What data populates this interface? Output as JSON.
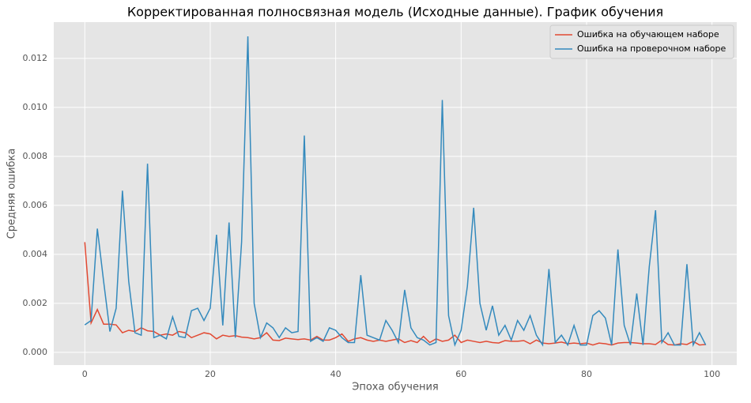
{
  "chart_data": {
    "type": "line",
    "title": "Корректированная полносвязная модель (Исходные данные). График обучения",
    "x_label": "Эпоха обучения",
    "y_label": "Средняя ошибка",
    "x": [
      0,
      1,
      2,
      3,
      4,
      5,
      6,
      7,
      8,
      9,
      10,
      11,
      12,
      13,
      14,
      15,
      16,
      17,
      18,
      19,
      20,
      21,
      22,
      23,
      24,
      25,
      26,
      27,
      28,
      29,
      30,
      31,
      32,
      33,
      34,
      35,
      36,
      37,
      38,
      39,
      40,
      41,
      42,
      43,
      44,
      45,
      46,
      47,
      48,
      49,
      50,
      51,
      52,
      53,
      54,
      55,
      56,
      57,
      58,
      59,
      60,
      61,
      62,
      63,
      64,
      65,
      66,
      67,
      68,
      69,
      70,
      71,
      72,
      73,
      74,
      75,
      76,
      77,
      78,
      79,
      80,
      81,
      82,
      83,
      84,
      85,
      86,
      87,
      88,
      89,
      90,
      91,
      92,
      93,
      94,
      95,
      96,
      97,
      98,
      99
    ],
    "series": [
      {
        "name": "Ошибка на обучающем наборе",
        "color": "#e24a33",
        "values": [
          0.0045,
          0.0012,
          0.00175,
          0.00115,
          0.00115,
          0.00112,
          0.0008,
          0.0009,
          0.00085,
          0.001,
          0.00088,
          0.00085,
          0.0007,
          0.00075,
          0.0007,
          0.00085,
          0.0008,
          0.0006,
          0.0007,
          0.0008,
          0.00075,
          0.00055,
          0.0007,
          0.00065,
          0.00068,
          0.00062,
          0.0006,
          0.00055,
          0.0006,
          0.0008,
          0.0005,
          0.00048,
          0.00058,
          0.00055,
          0.00052,
          0.00055,
          0.0005,
          0.00065,
          0.0005,
          0.0005,
          0.0006,
          0.00075,
          0.00045,
          0.00055,
          0.0006,
          0.0005,
          0.00045,
          0.0005,
          0.00045,
          0.0005,
          0.00055,
          0.0004,
          0.00048,
          0.0004,
          0.00065,
          0.0004,
          0.00055,
          0.00045,
          0.0005,
          0.0007,
          0.0004,
          0.0005,
          0.00045,
          0.0004,
          0.00045,
          0.0004,
          0.00038,
          0.00048,
          0.00045,
          0.00045,
          0.00048,
          0.00035,
          0.0005,
          0.00038,
          0.00035,
          0.00038,
          0.00042,
          0.00035,
          0.00038,
          0.00035,
          0.00038,
          0.0003,
          0.00038,
          0.00035,
          0.0003,
          0.00038,
          0.0004,
          0.0004,
          0.00038,
          0.00035,
          0.00035,
          0.00032,
          0.0005,
          0.00032,
          0.0003,
          0.00035,
          0.00032,
          0.00045,
          0.0003,
          0.00032
        ]
      },
      {
        "name": "Ошибка на проверочном наборе",
        "color": "#348abd",
        "values": [
          0.00112,
          0.0013,
          0.00505,
          0.0029,
          0.00085,
          0.0018,
          0.0066,
          0.0029,
          0.0008,
          0.0007,
          0.0077,
          0.0006,
          0.0007,
          0.00055,
          0.00145,
          0.00065,
          0.0006,
          0.0017,
          0.0018,
          0.0013,
          0.0018,
          0.0048,
          0.0011,
          0.0053,
          0.0006,
          0.0045,
          0.0129,
          0.002,
          0.0006,
          0.0012,
          0.001,
          0.0006,
          0.001,
          0.0008,
          0.00085,
          0.00885,
          0.00045,
          0.0006,
          0.00045,
          0.001,
          0.0009,
          0.0006,
          0.0004,
          0.0004,
          0.00315,
          0.0007,
          0.0006,
          0.0005,
          0.0013,
          0.0009,
          0.0004,
          0.00255,
          0.001,
          0.0006,
          0.0005,
          0.0003,
          0.0004,
          0.0103,
          0.0015,
          0.0003,
          0.0009,
          0.0027,
          0.0059,
          0.002,
          0.0009,
          0.0019,
          0.0007,
          0.0011,
          0.0005,
          0.0013,
          0.0009,
          0.0015,
          0.0007,
          0.0003,
          0.0034,
          0.0004,
          0.0007,
          0.0003,
          0.0011,
          0.0003,
          0.0003,
          0.0015,
          0.0017,
          0.0014,
          0.0003,
          0.0042,
          0.0011,
          0.0003,
          0.0024,
          0.0003,
          0.0035,
          0.0058,
          0.0004,
          0.0008,
          0.0003,
          0.0003,
          0.0036,
          0.0003,
          0.0008,
          0.0003
        ]
      }
    ],
    "xlim": [
      -4.95,
      103.95
    ],
    "ylim": [
      -0.00052,
      0.01348
    ],
    "xticks": [
      0,
      20,
      40,
      60,
      80,
      100
    ],
    "yticks": [
      {
        "value": 0,
        "label": "0.000"
      },
      {
        "value": 0.002,
        "label": "0.002"
      },
      {
        "value": 0.004,
        "label": "0.004"
      },
      {
        "value": 0.006,
        "label": "0.006"
      },
      {
        "value": 0.008,
        "label": "0.008"
      },
      {
        "value": 0.01,
        "label": "0.010"
      },
      {
        "value": 0.012,
        "label": "0.012"
      }
    ],
    "grid": true,
    "legend": "upper right"
  }
}
